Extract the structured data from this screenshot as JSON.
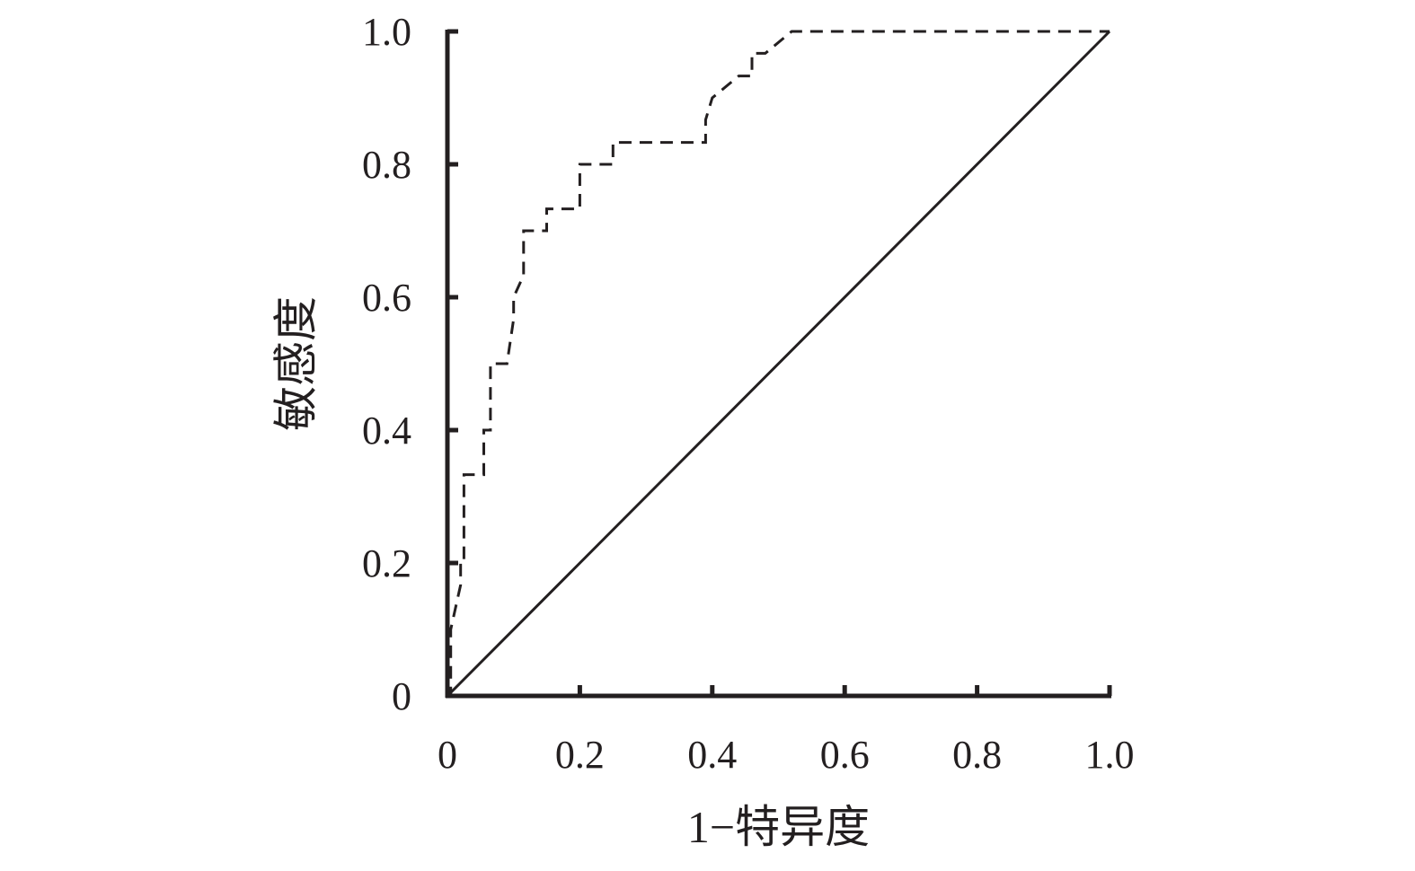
{
  "chart_data": {
    "type": "line",
    "title": "",
    "xlabel": "1−特异度",
    "ylabel": "敏感度",
    "xlim": [
      0,
      1.0
    ],
    "ylim": [
      0,
      1.0
    ],
    "x_ticks": [
      0,
      0.2,
      0.4,
      0.6,
      0.8,
      1.0
    ],
    "x_tick_labels": [
      "0",
      "0.2",
      "0.4",
      "0.6",
      "0.8",
      "1.0"
    ],
    "y_ticks": [
      0,
      0.2,
      0.4,
      0.6,
      0.8,
      1.0
    ],
    "y_tick_labels": [
      "0",
      "0.2",
      "0.4",
      "0.6",
      "0.8",
      "1.0"
    ],
    "grid": false,
    "legend": "none",
    "series": [
      {
        "style": "dashed",
        "color": "#231f20",
        "x": [
          0,
          0.005,
          0.005,
          0.02,
          0.02,
          0.025,
          0.025,
          0.055,
          0.055,
          0.065,
          0.065,
          0.09,
          0.1,
          0.1,
          0.115,
          0.115,
          0.15,
          0.15,
          0.2,
          0.2,
          0.225,
          0.225,
          0.25,
          0.25,
          0.39,
          0.39,
          0.4,
          0.44,
          0.46,
          0.46,
          0.48,
          0.52,
          1.0
        ],
        "y": [
          0,
          0,
          0.1,
          0.167,
          0.2,
          0.2,
          0.333,
          0.333,
          0.4,
          0.4,
          0.5,
          0.5,
          0.567,
          0.6,
          0.633,
          0.7,
          0.7,
          0.733,
          0.733,
          0.8,
          0.8,
          0.8,
          0.8,
          0.833,
          0.833,
          0.867,
          0.9,
          0.933,
          0.933,
          0.967,
          0.967,
          1.0,
          1.0
        ]
      },
      {
        "style": "solid",
        "color": "#231f20",
        "x": [
          0,
          1.0
        ],
        "y": [
          0,
          1.0
        ]
      }
    ]
  }
}
